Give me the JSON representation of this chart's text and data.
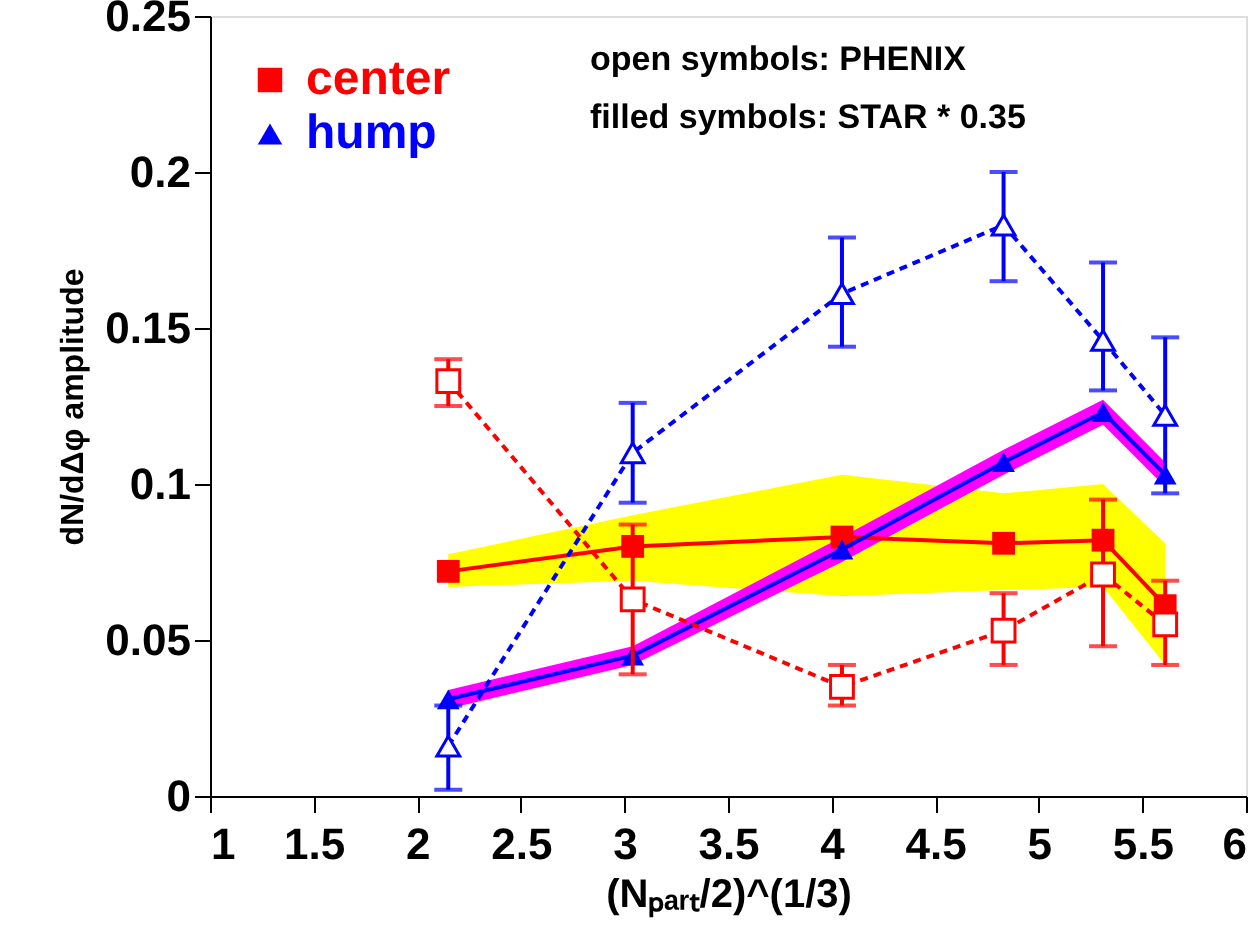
{
  "chart_data": {
    "type": "line",
    "xlabel": "(Nₚₐᵣₜ/2)^(1/3)",
    "ylabel": "dN/dΔφ amplitude",
    "xlim": [
      1,
      6
    ],
    "xticks": [
      1,
      1.5,
      2,
      2.5,
      3,
      3.5,
      4,
      4.5,
      5,
      5.5,
      6
    ],
    "ylim": [
      0,
      0.25
    ],
    "yticks": [
      0,
      0.05,
      0.1,
      0.15,
      0.2,
      0.25
    ],
    "grid": false,
    "legend": "top left",
    "annotations": [
      "open symbols: PHENIX",
      "filled symbols: STAR * 0.35"
    ],
    "series": [
      {
        "name": "center",
        "color": "#ff0000",
        "marker": "square",
        "line_style": "solid",
        "x": [
          2.15,
          3.04,
          4.05,
          4.83,
          5.31,
          5.61
        ],
        "values": [
          0.072,
          0.08,
          0.083,
          0.081,
          0.082,
          0.061
        ],
        "lower": [
          0.067,
          0.069,
          0.064,
          0.066,
          0.067,
          0.042
        ],
        "upper": [
          0.0775,
          0.09,
          0.103,
          0.097,
          0.1,
          0.081
        ]
      },
      {
        "name": "hump",
        "color": "#0000ff",
        "marker": "triangle",
        "line_style": "solid",
        "x": [
          2.15,
          3.04,
          4.05,
          4.83,
          5.31,
          5.61
        ],
        "values": [
          0.031,
          0.045,
          0.079,
          0.107,
          0.123,
          0.103
        ],
        "lower": [
          0.028,
          0.042,
          0.075,
          0.103,
          0.119,
          0.099
        ],
        "upper": [
          0.034,
          0.048,
          0.083,
          0.111,
          0.127,
          0.107
        ]
      },
      {
        "color": "#ff0000",
        "marker": "square",
        "line_style": "dashed",
        "x": [
          2.15,
          3.04,
          4.05,
          4.83,
          5.31,
          5.61
        ],
        "values": [
          0.133,
          0.063,
          0.035,
          0.053,
          0.071,
          0.055
        ],
        "errors": [
          [
            0.125,
            0.14
          ],
          [
            0.039,
            0.087
          ],
          [
            0.029,
            0.042
          ],
          [
            0.042,
            0.065
          ],
          [
            0.048,
            0.095
          ],
          [
            0.042,
            0.069
          ]
        ]
      },
      {
        "color": "#0000ff",
        "marker": "triangle",
        "line_style": "dashed",
        "x": [
          2.15,
          3.04,
          4.05,
          4.83,
          5.31,
          5.61
        ],
        "values": [
          0.016,
          0.11,
          0.161,
          0.183,
          0.146,
          0.122
        ],
        "errors": [
          [
            0.002,
            0.029
          ],
          [
            0.094,
            0.126
          ],
          [
            0.144,
            0.179
          ],
          [
            0.165,
            0.2
          ],
          [
            0.13,
            0.171
          ],
          [
            0.097,
            0.147
          ]
        ]
      }
    ]
  }
}
